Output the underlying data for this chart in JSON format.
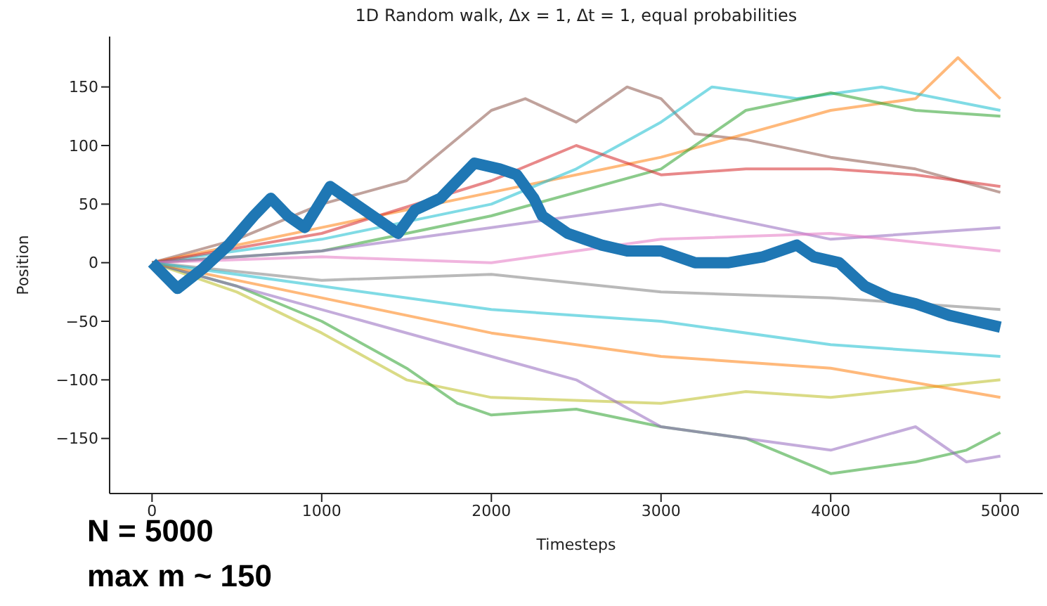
{
  "chart_data": {
    "type": "line",
    "title": "1D Random walk, Δx = 1, Δt = 1, equal probabilities",
    "xlabel": "Timesteps",
    "ylabel": "Position",
    "xlim": [
      -250,
      5250
    ],
    "xticks": [
      0,
      1000,
      2000,
      3000,
      4000,
      5000
    ],
    "ylim": [
      -197,
      193
    ],
    "yticks": [
      -150,
      -100,
      -50,
      0,
      50,
      100,
      150
    ],
    "annotations": [
      "N = 5000",
      "max m ~ 150"
    ],
    "series": [
      {
        "color": "#8c564b",
        "x": [
          0,
          500,
          1000,
          1500,
          2000,
          2200,
          2500,
          2800,
          3000,
          3200,
          3500,
          4000,
          4500,
          5000
        ],
        "values": [
          0,
          20,
          50,
          70,
          130,
          140,
          120,
          150,
          140,
          110,
          105,
          90,
          80,
          60
        ]
      },
      {
        "color": "#ff7f0e",
        "x": [
          0,
          1000,
          2000,
          3000,
          3500,
          4000,
          4500,
          4750,
          5000
        ],
        "values": [
          0,
          30,
          60,
          90,
          110,
          130,
          140,
          175,
          140
        ]
      },
      {
        "color": "#17becf",
        "x": [
          0,
          1000,
          2000,
          2500,
          3000,
          3300,
          3800,
          4300,
          5000
        ],
        "values": [
          0,
          20,
          50,
          80,
          120,
          150,
          140,
          150,
          130
        ]
      },
      {
        "color": "#2ca02c",
        "x": [
          0,
          1000,
          2000,
          3000,
          3500,
          4000,
          4500,
          5000
        ],
        "values": [
          0,
          10,
          40,
          80,
          130,
          145,
          130,
          125
        ]
      },
      {
        "color": "#d62728",
        "x": [
          0,
          1000,
          2000,
          2500,
          3000,
          3500,
          4000,
          4500,
          5000
        ],
        "values": [
          0,
          25,
          70,
          100,
          75,
          80,
          80,
          75,
          65
        ]
      },
      {
        "color": "#9467bd",
        "x": [
          0,
          1000,
          2000,
          3000,
          4000,
          5000
        ],
        "values": [
          0,
          10,
          30,
          50,
          20,
          30
        ]
      },
      {
        "color": "#7f7f7f",
        "x": [
          0,
          1000,
          2000,
          3000,
          4000,
          5000
        ],
        "values": [
          0,
          -15,
          -10,
          -25,
          -30,
          -40
        ]
      },
      {
        "color": "#e377c2",
        "x": [
          0,
          1000,
          2000,
          3000,
          4000,
          5000
        ],
        "values": [
          0,
          5,
          0,
          20,
          25,
          10
        ]
      },
      {
        "color": "#bcbd22",
        "x": [
          0,
          500,
          1000,
          1500,
          2000,
          3000,
          3500,
          4000,
          5000
        ],
        "values": [
          0,
          -25,
          -60,
          -100,
          -115,
          -120,
          -110,
          -115,
          -100
        ]
      },
      {
        "color": "#2ca02c",
        "x": [
          0,
          500,
          1000,
          1500,
          1800,
          2000,
          2500,
          3000,
          3500,
          4000,
          4500,
          4800,
          5000
        ],
        "values": [
          0,
          -20,
          -50,
          -90,
          -120,
          -130,
          -125,
          -140,
          -150,
          -180,
          -170,
          -160,
          -145
        ]
      },
      {
        "color": "#9467bd",
        "x": [
          0,
          1000,
          2000,
          2500,
          3000,
          3500,
          4000,
          4500,
          4800,
          5000
        ],
        "values": [
          0,
          -40,
          -80,
          -100,
          -140,
          -150,
          -160,
          -140,
          -170,
          -165
        ]
      },
      {
        "color": "#ff7f0e",
        "x": [
          0,
          1000,
          2000,
          3000,
          4000,
          5000
        ],
        "values": [
          0,
          -30,
          -60,
          -80,
          -90,
          -115
        ]
      },
      {
        "color": "#17becf",
        "x": [
          0,
          1000,
          2000,
          3000,
          4000,
          5000
        ],
        "values": [
          0,
          -20,
          -40,
          -50,
          -70,
          -80
        ]
      },
      {
        "color": "#1f77b4",
        "x": [
          0,
          150,
          300,
          450,
          600,
          700,
          800,
          900,
          1050,
          1200,
          1350,
          1450,
          1550,
          1700,
          1900,
          2050,
          2150,
          2250,
          2300,
          2450,
          2550,
          2650,
          2800,
          3000,
          3200,
          3400,
          3600,
          3800,
          3900,
          4050,
          4200,
          4350,
          4500,
          4700,
          4850,
          5000
        ],
        "values": [
          0,
          -22,
          -5,
          15,
          40,
          55,
          40,
          30,
          65,
          50,
          35,
          25,
          45,
          55,
          85,
          80,
          75,
          55,
          40,
          25,
          20,
          15,
          10,
          10,
          0,
          0,
          5,
          15,
          5,
          0,
          -20,
          -30,
          -35,
          -45,
          -50,
          -55
        ]
      }
    ]
  }
}
